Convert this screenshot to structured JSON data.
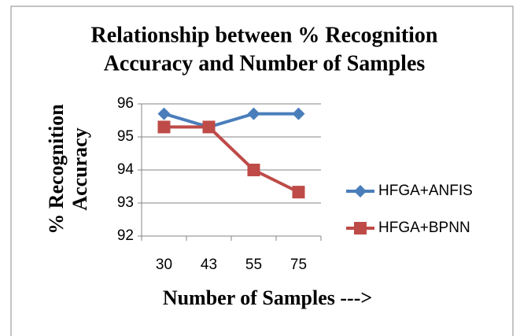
{
  "chart_data": {
    "type": "line",
    "title": [
      "Relationship between % Recognition",
      "Accuracy and Number of Samples"
    ],
    "xlabel": "Number of Samples --->",
    "ylabel": [
      "% Recognition",
      "Accuracy"
    ],
    "categories": [
      "30",
      "43",
      "55",
      "75"
    ],
    "series": [
      {
        "name": "HFGA+ANFIS",
        "color": "#4a7ebb",
        "marker": "diamond",
        "values": [
          95.7,
          95.3,
          95.7,
          95.7
        ]
      },
      {
        "name": "HFGA+BPNN",
        "color": "#be4b48",
        "marker": "square",
        "values": [
          95.3,
          95.3,
          94.0,
          93.33
        ]
      }
    ],
    "ylim": [
      92,
      96
    ],
    "yticks": [
      92,
      93,
      94,
      95,
      96
    ],
    "grid": true,
    "legend": "right"
  }
}
